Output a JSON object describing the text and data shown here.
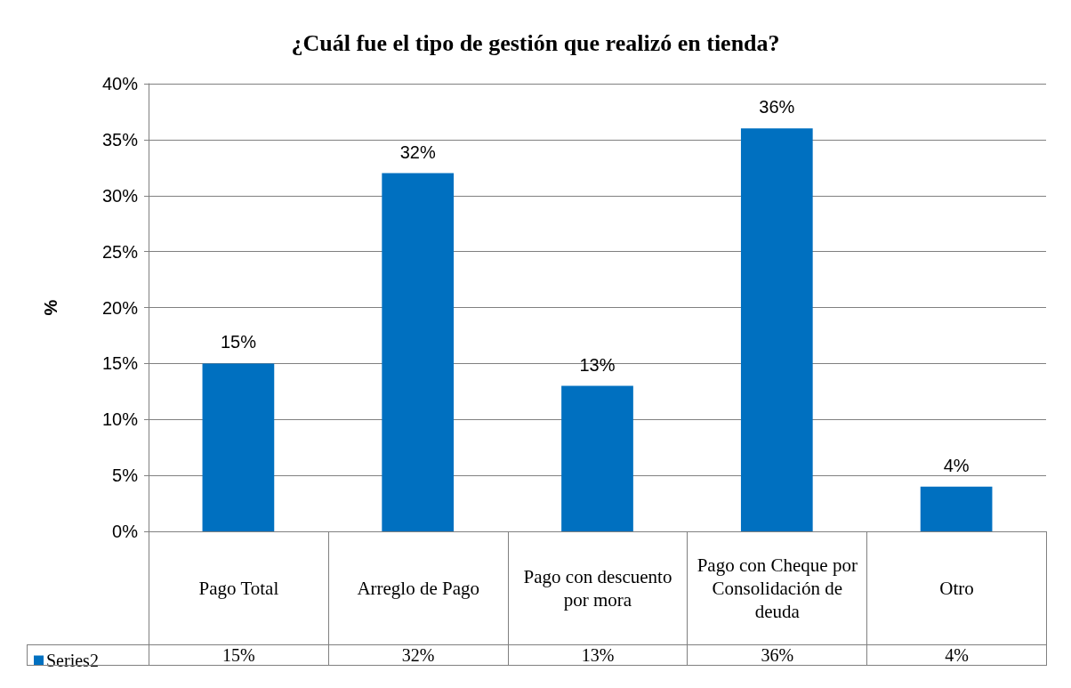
{
  "chart_data": {
    "type": "bar",
    "title": "¿Cuál fue el tipo de gestión que realizó en tienda?",
    "ylabel": "%",
    "categories": [
      "Pago Total",
      "Arreglo de Pago",
      "Pago con descuento por mora",
      "Pago con Cheque por Consolidación de deuda",
      "Otro"
    ],
    "series": [
      {
        "name": "Series2",
        "color": "#0070c0",
        "values": [
          15,
          32,
          13,
          36,
          4
        ],
        "value_labels": [
          "15%",
          "32%",
          "13%",
          "36%",
          "4%"
        ]
      }
    ],
    "ylim": [
      0,
      40
    ],
    "yticks": [
      {
        "value": 0,
        "label": "0%"
      },
      {
        "value": 5,
        "label": "5%"
      },
      {
        "value": 10,
        "label": "10%"
      },
      {
        "value": 15,
        "label": "15%"
      },
      {
        "value": 20,
        "label": "20%"
      },
      {
        "value": 25,
        "label": "25%"
      },
      {
        "value": 30,
        "label": "30%"
      },
      {
        "value": 35,
        "label": "35%"
      },
      {
        "value": 40,
        "label": "40%"
      }
    ],
    "grid": "y",
    "legend": "bottom left"
  }
}
